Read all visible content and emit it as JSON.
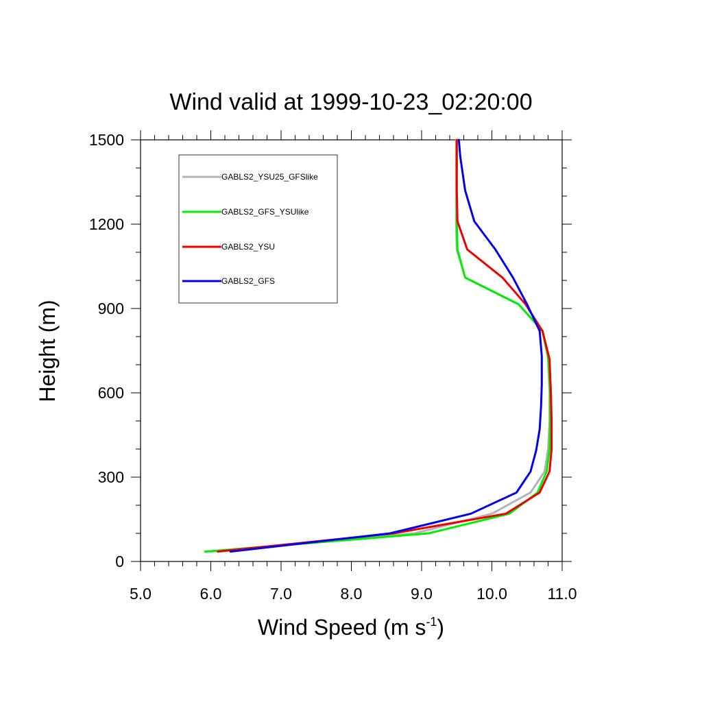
{
  "chart_data": {
    "type": "line",
    "title": "Wind valid at 1999-10-23_02:20:00",
    "xlabel": "Wind Speed (m s",
    "xlabel_sup": "-1",
    "xlabel_end": ")",
    "ylabel": "Height (m)",
    "xlim": [
      5.0,
      11.0
    ],
    "ylim": [
      0,
      1500
    ],
    "x_ticks": [
      "5.0",
      "6.0",
      "7.0",
      "8.0",
      "9.0",
      "10.0",
      "11.0"
    ],
    "y_ticks": [
      "0",
      "300",
      "600",
      "900",
      "1200",
      "1500"
    ],
    "grid": false,
    "legend_position": "top-left",
    "series": [
      {
        "name": "GABLS2_YSU25_GFSlike",
        "color": "#b4b4b4",
        "points": [
          [
            6.0,
            35
          ],
          [
            8.9,
            100
          ],
          [
            10.0,
            170
          ],
          [
            10.55,
            245
          ],
          [
            10.75,
            320
          ],
          [
            10.8,
            400
          ],
          [
            10.82,
            500
          ],
          [
            10.82,
            600
          ],
          [
            10.8,
            720
          ],
          [
            10.72,
            820
          ],
          [
            10.38,
            915
          ],
          [
            9.62,
            1010
          ],
          [
            9.5,
            1110
          ],
          [
            9.49,
            1210
          ],
          [
            9.49,
            1320
          ],
          [
            9.49,
            1400
          ],
          [
            9.49,
            1500
          ]
        ]
      },
      {
        "name": "GABLS2_GFS_YSUlike",
        "color": "#00ee00",
        "points": [
          [
            5.92,
            35
          ],
          [
            9.1,
            100
          ],
          [
            10.25,
            170
          ],
          [
            10.65,
            245
          ],
          [
            10.78,
            320
          ],
          [
            10.82,
            400
          ],
          [
            10.83,
            500
          ],
          [
            10.83,
            600
          ],
          [
            10.8,
            730
          ],
          [
            10.72,
            820
          ],
          [
            10.38,
            915
          ],
          [
            9.62,
            1010
          ],
          [
            9.51,
            1110
          ],
          [
            9.5,
            1210
          ],
          [
            9.5,
            1320
          ],
          [
            9.5,
            1400
          ],
          [
            9.5,
            1500
          ]
        ]
      },
      {
        "name": "GABLS2_YSU",
        "color": "#ee0000",
        "points": [
          [
            6.1,
            35
          ],
          [
            8.6,
            100
          ],
          [
            10.2,
            170
          ],
          [
            10.68,
            245
          ],
          [
            10.82,
            320
          ],
          [
            10.85,
            400
          ],
          [
            10.85,
            500
          ],
          [
            10.84,
            600
          ],
          [
            10.82,
            720
          ],
          [
            10.72,
            820
          ],
          [
            10.48,
            915
          ],
          [
            10.15,
            1010
          ],
          [
            9.65,
            1110
          ],
          [
            9.51,
            1210
          ],
          [
            9.5,
            1320
          ],
          [
            9.5,
            1400
          ],
          [
            9.5,
            1500
          ]
        ]
      },
      {
        "name": "GABLS2_GFS",
        "color": "#0000ee",
        "points": [
          [
            6.28,
            35
          ],
          [
            8.55,
            100
          ],
          [
            9.7,
            170
          ],
          [
            10.35,
            245
          ],
          [
            10.55,
            320
          ],
          [
            10.63,
            395
          ],
          [
            10.68,
            470
          ],
          [
            10.7,
            550
          ],
          [
            10.71,
            630
          ],
          [
            10.71,
            730
          ],
          [
            10.68,
            820
          ],
          [
            10.5,
            915
          ],
          [
            10.3,
            1010
          ],
          [
            10.05,
            1110
          ],
          [
            9.75,
            1210
          ],
          [
            9.62,
            1320
          ],
          [
            9.55,
            1440
          ],
          [
            9.53,
            1500
          ]
        ]
      }
    ]
  }
}
